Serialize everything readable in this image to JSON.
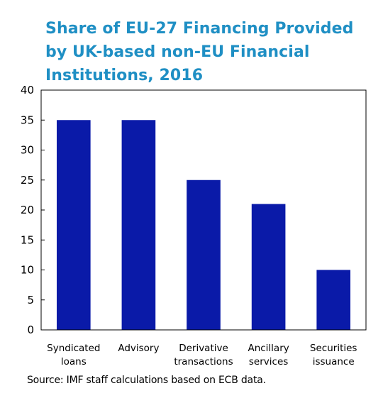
{
  "chart_data": {
    "type": "bar",
    "title": "Share of EU-27 Financing Provided by UK-based non-EU Financial Institutions, 2016",
    "categories": [
      [
        "Syndicated",
        "loans"
      ],
      [
        "Advisory"
      ],
      [
        "Derivative",
        "transactions"
      ],
      [
        "Ancillary",
        "services"
      ],
      [
        "Securities",
        "issuance"
      ]
    ],
    "values": [
      35,
      35,
      25,
      21,
      10
    ],
    "ylim": [
      0,
      40
    ],
    "yticks": [
      0,
      5,
      10,
      15,
      20,
      25,
      30,
      35,
      40
    ],
    "xlabel": "",
    "ylabel": "",
    "grid": false,
    "bar_color": "#0a1aa8",
    "title_color": "#1f8fc4"
  },
  "source": "Source: IMF staff calculations based on ECB data."
}
